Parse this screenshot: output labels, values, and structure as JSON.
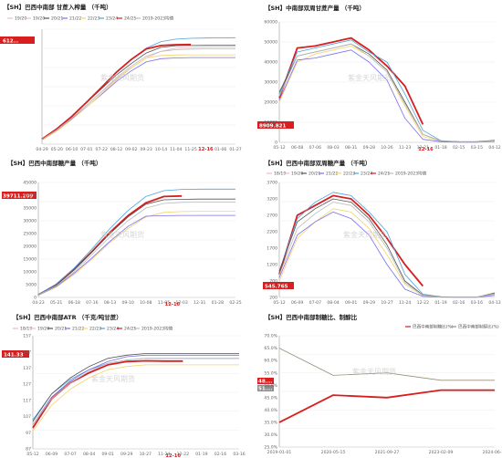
{
  "charts": [
    {
      "id": "p1",
      "title": "【SH】巴西中南部 甘蔗入榨量 （千吨）",
      "legend": [
        "19/20",
        "19/20",
        "20/21",
        "21/22",
        "22/23",
        "23/24",
        "24/25",
        "2019-2023均值"
      ],
      "callout": "612…",
      "highlight_tick": "12-16",
      "x_ticks": [
        "04-29",
        "05-20",
        "06-10",
        "07-01",
        "07-22",
        "08-12",
        "09-02",
        "09-23",
        "10-14",
        "11-04",
        "11-25",
        "12-16",
        "01-06",
        "01-27"
      ],
      "watermark": "紫金天风期货"
    },
    {
      "id": "p2",
      "title": "【SH】中南部双周甘蔗产量 （千吨）",
      "callout": "8909.821",
      "highlight_tick": "12-16",
      "y_ticks": [
        "60000",
        "50000",
        "40000",
        "30000",
        "20000",
        "10000",
        "0"
      ],
      "x_ticks": [
        "05-12",
        "06-08",
        "07-06",
        "08-03",
        "08-31",
        "09-28",
        "10-26",
        "11-23",
        "12-21",
        "01-18",
        "02-15",
        "03-15",
        "04-12"
      ],
      "watermark": "紫金天风期货"
    },
    {
      "id": "p3",
      "title": "【SH】巴西中南部糖产量 （千吨）",
      "callout": "39711.209",
      "highlight_tick": "12-16",
      "y_ticks": [
        "45000",
        "40000",
        "35000",
        "30000",
        "25000",
        "20000",
        "15000",
        "10000",
        "5000",
        "0"
      ],
      "x_ticks": [
        "04-23",
        "05-21",
        "06-18",
        "07-16",
        "08-13",
        "09-10",
        "10-08",
        "11-05",
        "12-03",
        "12-31",
        "01-28",
        "02-25"
      ],
      "watermark": "紫金天风期货"
    },
    {
      "id": "p4",
      "title": "【SH】巴西中南部双周糖产量 （千吨）",
      "legend": [
        "18/19",
        "19/20",
        "20/21",
        "21/22",
        "22/23",
        "23/24",
        "24/25",
        "2019-2023均值"
      ],
      "callout": "545.765",
      "y_ticks": [
        "3700",
        "3200",
        "2700",
        "2200",
        "1700",
        "1200",
        "700",
        "200"
      ],
      "x_ticks": [
        "05-12",
        "06-09",
        "07-07",
        "08-04",
        "09-01",
        "09-29",
        "10-27",
        "11-24",
        "12-22",
        "01-19",
        "02-16",
        "03-16",
        "04-13"
      ],
      "watermark": "紫金天风期货"
    },
    {
      "id": "p5",
      "title": "【SH】巴西中南部ATR （千克/吨甘蔗）",
      "legend": [
        "18/19",
        "19/20",
        "20/21",
        "21/22",
        "22/23",
        "23/24",
        "24/25",
        "2019-2023均值"
      ],
      "callout": "141.33",
      "highlight_tick": "12-16",
      "y_ticks": [
        "157",
        "147",
        "137",
        "127",
        "117",
        "107",
        "97",
        "87"
      ],
      "x_ticks": [
        "05-12",
        "06-09",
        "07-07",
        "08-04",
        "09-01",
        "09-29",
        "10-27",
        "11-24",
        "12-22",
        "01-19",
        "02-16",
        "03-16"
      ],
      "watermark": "紫金天风期货"
    },
    {
      "id": "p6",
      "title": "【SH】巴西中南部制糖比、制醇比",
      "legend": [
        "巴西中南部制糖比(%)",
        "巴西中南部制醇比(%)"
      ],
      "y_ticks": [
        "70.0%",
        "65.0%",
        "60.0%",
        "55.0%",
        "50.0%",
        "45.0%",
        "40.0%",
        "35.0%",
        "30.0%",
        "25.0%"
      ],
      "callouts": [
        "48.…",
        "51.…"
      ],
      "x_ticks": [
        "2019-01-01",
        "2020-05-15",
        "2021-09-27",
        "2023-02-09",
        "2024-06-23"
      ],
      "watermark": "紫金天风期货"
    }
  ],
  "chart_data": [
    {
      "type": "line",
      "title": "【SH】巴西中南部 甘蔗入榨量 （千吨）",
      "x": [
        "04-29",
        "05-20",
        "06-10",
        "07-01",
        "07-22",
        "08-12",
        "09-02",
        "09-23",
        "10-14",
        "11-04",
        "11-25",
        "12-16",
        "01-06",
        "01-27"
      ],
      "series": [
        {
          "name": "19/20",
          "color": "#f2b8c6",
          "values": [
            30000,
            90000,
            160000,
            240000,
            320000,
            400000,
            470000,
            530000,
            570000,
            590000,
            595000,
            596000,
            597000,
            598000
          ]
        },
        {
          "name": "20/21",
          "color": "#555555",
          "values": [
            32000,
            95000,
            170000,
            255000,
            340000,
            425000,
            495000,
            560000,
            595000,
            605000,
            606000,
            607000,
            607000,
            607000
          ]
        },
        {
          "name": "21/22",
          "color": "#7a6ff0",
          "values": [
            28000,
            85000,
            155000,
            230000,
            305000,
            385000,
            450000,
            505000,
            525000,
            530000,
            532000,
            532000,
            532000,
            532000
          ]
        },
        {
          "name": "22/23",
          "color": "#f5d36a",
          "values": [
            25000,
            80000,
            150000,
            228000,
            310000,
            395000,
            468000,
            530000,
            545000,
            548000,
            549000,
            549000,
            549000,
            549000
          ]
        },
        {
          "name": "23/24",
          "color": "#4da3d9",
          "values": [
            30000,
            92000,
            168000,
            255000,
            345000,
            440000,
            520000,
            590000,
            630000,
            645000,
            650000,
            652000,
            653000,
            654000
          ]
        },
        {
          "name": "24/25",
          "color": "#d81e1e",
          "values": [
            31000,
            94000,
            170000,
            258000,
            348000,
            442000,
            520000,
            585000,
            606000,
            611000,
            612000,
            null,
            null,
            null
          ]
        },
        {
          "name": "2019-2023均值",
          "color": "#bcbcbc",
          "values": [
            29000,
            88000,
            160000,
            240000,
            322000,
            408000,
            480000,
            540000,
            570000,
            580000,
            584000,
            585000,
            586000,
            586000
          ]
        }
      ]
    },
    {
      "type": "line",
      "title": "【SH】中南部双周甘蔗产量 （千吨）",
      "x": [
        "05-12",
        "06-08",
        "07-06",
        "08-03",
        "08-31",
        "09-28",
        "10-26",
        "11-23",
        "12-21",
        "01-18",
        "02-15",
        "03-15",
        "04-12"
      ],
      "ylim": [
        0,
        60000
      ],
      "series": [
        {
          "name": "24/25",
          "color": "#d81e1e",
          "values": [
            22000,
            47000,
            48000,
            50000,
            52000,
            46000,
            38000,
            28000,
            8909,
            null,
            null,
            null,
            null
          ]
        },
        {
          "name": "23/24",
          "color": "#4da3d9",
          "values": [
            24000,
            45000,
            47000,
            49000,
            51000,
            45000,
            40000,
            24000,
            6000,
            800,
            300,
            200,
            500
          ]
        },
        {
          "name": "22/23",
          "color": "#f5d36a",
          "values": [
            20000,
            40000,
            44000,
            46000,
            48000,
            43000,
            35000,
            18000,
            3000,
            500,
            200,
            200,
            900
          ]
        },
        {
          "name": "21/22",
          "color": "#7a6ff0",
          "values": [
            21000,
            41000,
            42000,
            44000,
            46000,
            40000,
            31000,
            12000,
            1500,
            300,
            100,
            100,
            600
          ]
        },
        {
          "name": "20/21",
          "color": "#555555",
          "values": [
            25000,
            43000,
            45000,
            47000,
            49000,
            44000,
            36000,
            20000,
            4000,
            700,
            300,
            300,
            1000
          ]
        },
        {
          "name": "2019-2023均值",
          "color": "#bcbcbc",
          "values": [
            23000,
            43000,
            45000,
            47000,
            49000,
            43000,
            35000,
            19000,
            4000,
            700,
            300,
            200,
            800
          ]
        }
      ]
    },
    {
      "type": "line",
      "title": "【SH】巴西中南部糖产量 （千吨）",
      "x": [
        "04-23",
        "05-21",
        "06-18",
        "07-16",
        "08-13",
        "09-10",
        "10-08",
        "11-05",
        "12-03",
        "12-31",
        "01-28",
        "02-25"
      ],
      "ylim": [
        0,
        45000
      ],
      "series": [
        {
          "name": "24/25",
          "color": "#d81e1e",
          "values": [
            1000,
            5000,
            11000,
            18000,
            25500,
            32000,
            37000,
            39500,
            39711,
            null,
            null,
            null
          ]
        },
        {
          "name": "23/24",
          "color": "#4da3d9",
          "values": [
            1100,
            5300,
            11500,
            19000,
            27000,
            34000,
            39500,
            41800,
            42300,
            42400,
            42400,
            42400
          ]
        },
        {
          "name": "22/23",
          "color": "#f5d36a",
          "values": [
            800,
            4000,
            9000,
            15000,
            21500,
            27000,
            31500,
            33300,
            33600,
            33700,
            33700,
            33700
          ]
        },
        {
          "name": "21/22",
          "color": "#7a6ff0",
          "values": [
            900,
            4300,
            9500,
            15500,
            22000,
            27800,
            31800,
            32000,
            32100,
            32100,
            32100,
            32100
          ]
        },
        {
          "name": "20/21",
          "color": "#555555",
          "values": [
            1000,
            4800,
            10800,
            17800,
            25000,
            31500,
            36500,
            38200,
            38400,
            38500,
            38500,
            38500
          ]
        },
        {
          "name": "2019-2023均值",
          "color": "#bcbcbc",
          "values": [
            950,
            4500,
            10000,
            16800,
            23800,
            30000,
            35000,
            36800,
            37200,
            37300,
            37300,
            37300
          ]
        }
      ]
    },
    {
      "type": "line",
      "title": "【SH】巴西中南部双周糖产量 （千吨）",
      "x": [
        "05-12",
        "06-09",
        "07-07",
        "08-04",
        "09-01",
        "09-29",
        "10-27",
        "11-24",
        "12-22",
        "01-19",
        "02-16",
        "03-16",
        "04-13"
      ],
      "ylim": [
        200,
        3700
      ],
      "series": [
        {
          "name": "24/25",
          "color": "#d81e1e",
          "values": [
            900,
            2700,
            3000,
            3300,
            3200,
            2700,
            2000,
            1200,
            546,
            null,
            null,
            null,
            null
          ]
        },
        {
          "name": "23/24",
          "color": "#4da3d9",
          "values": [
            1000,
            2600,
            3100,
            3400,
            3300,
            2800,
            2200,
            900,
            300,
            220,
            210,
            210,
            300
          ]
        },
        {
          "name": "22/23",
          "color": "#f5d36a",
          "values": [
            700,
            2000,
            2500,
            2900,
            2800,
            2300,
            1500,
            600,
            250,
            210,
            205,
            205,
            350
          ]
        },
        {
          "name": "21/22",
          "color": "#7a6ff0",
          "values": [
            800,
            2100,
            2500,
            2800,
            2600,
            2100,
            1200,
            450,
            230,
            210,
            205,
            205,
            260
          ]
        },
        {
          "name": "20/21",
          "color": "#555555",
          "values": [
            1000,
            2500,
            2900,
            3200,
            3100,
            2600,
            1800,
            700,
            270,
            220,
            210,
            210,
            330
          ]
        },
        {
          "name": "2019-2023均值",
          "color": "#bcbcbc",
          "values": [
            880,
            2300,
            2750,
            3100,
            3000,
            2500,
            1700,
            650,
            260,
            215,
            208,
            208,
            310
          ]
        }
      ]
    },
    {
      "type": "line",
      "title": "【SH】巴西中南部ATR （千克/吨甘蔗）",
      "x": [
        "05-12",
        "06-09",
        "07-07",
        "08-04",
        "09-01",
        "09-29",
        "10-27",
        "11-24",
        "12-22",
        "01-19",
        "02-16",
        "03-16"
      ],
      "ylim": [
        87,
        157
      ],
      "series": [
        {
          "name": "24/25",
          "color": "#d81e1e",
          "values": [
            100,
            118,
            128,
            134,
            139,
            141,
            141.5,
            141.3,
            141.33,
            null,
            null,
            null
          ]
        },
        {
          "name": "23/24",
          "color": "#4da3d9",
          "values": [
            105,
            121,
            130,
            136,
            140,
            142,
            143,
            143,
            143,
            143,
            143,
            143
          ]
        },
        {
          "name": "22/23",
          "color": "#f5d36a",
          "values": [
            98,
            114,
            124,
            131,
            136,
            138,
            139,
            139,
            139,
            139,
            139,
            139
          ]
        },
        {
          "name": "21/22",
          "color": "#7a6ff0",
          "values": [
            102,
            119,
            129,
            136,
            141,
            144,
            145,
            145,
            145,
            145,
            145,
            145
          ]
        },
        {
          "name": "20/21",
          "color": "#555555",
          "values": [
            104,
            121,
            131,
            138,
            143,
            145,
            146,
            146,
            146,
            146,
            146,
            146
          ]
        },
        {
          "name": "2019-2023均值",
          "color": "#bcbcbc",
          "values": [
            102,
            118,
            128,
            135,
            140,
            142,
            143,
            143,
            143,
            143,
            143,
            143
          ]
        }
      ]
    },
    {
      "type": "line",
      "title": "【SH】巴西中南部制糖比、制醇比",
      "x": [
        "2019-01-01",
        "2020-05-15",
        "2021-09-27",
        "2023-02-09",
        "2024-06-23"
      ],
      "ylim": [
        25,
        70
      ],
      "series": [
        {
          "name": "巴西中南部制糖比(%)",
          "color": "#d81e1e",
          "values": [
            35,
            46,
            45,
            48,
            48
          ]
        },
        {
          "name": "巴西中南部制醇比(%)",
          "color": "#9a8f7a",
          "values": [
            65,
            54,
            55,
            52,
            52
          ]
        }
      ]
    }
  ]
}
